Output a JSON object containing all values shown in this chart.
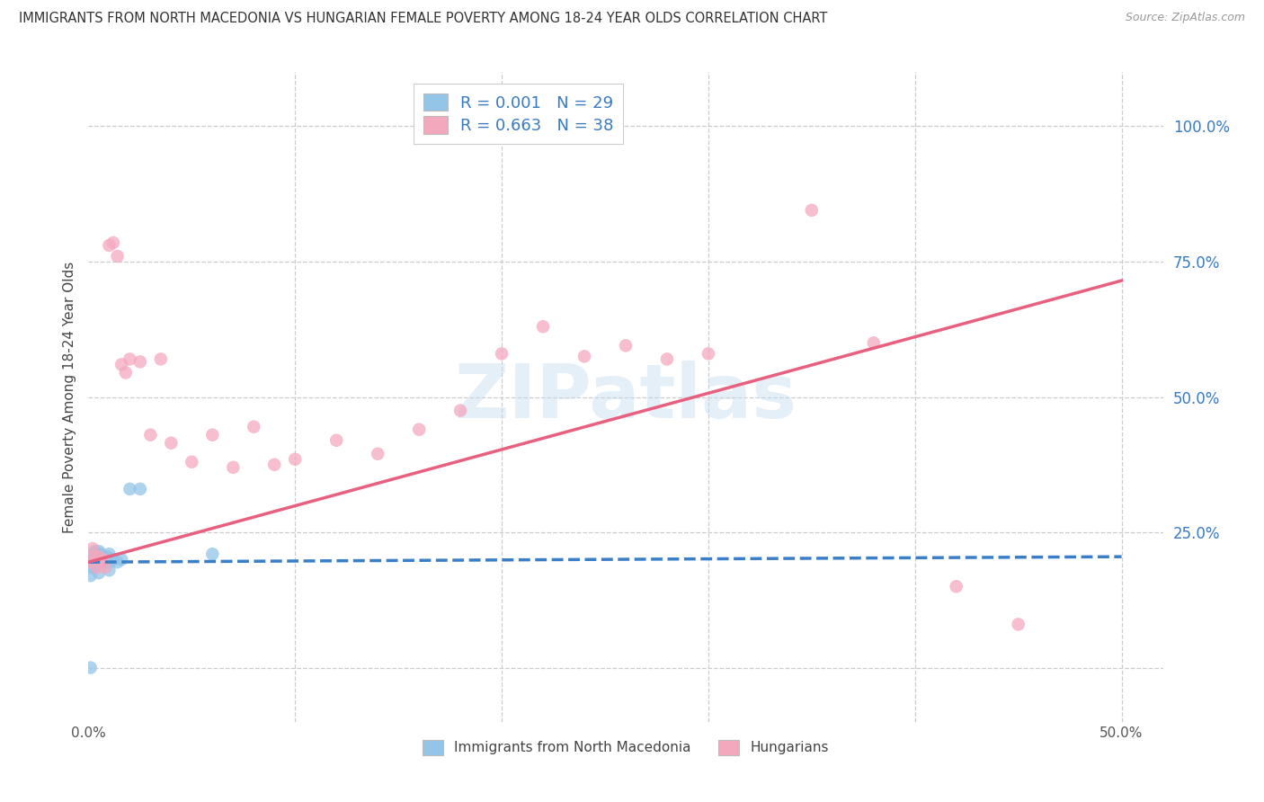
{
  "title": "IMMIGRANTS FROM NORTH MACEDONIA VS HUNGARIAN FEMALE POVERTY AMONG 18-24 YEAR OLDS CORRELATION CHART",
  "source": "Source: ZipAtlas.com",
  "ylabel": "Female Poverty Among 18-24 Year Olds",
  "xlim": [
    0.0,
    0.52
  ],
  "ylim": [
    -0.1,
    1.1
  ],
  "ytick_positions": [
    0.0,
    0.25,
    0.5,
    0.75,
    1.0
  ],
  "ytick_labels": [
    "",
    "25.0%",
    "50.0%",
    "75.0%",
    "100.0%"
  ],
  "xtick_positions": [
    0.0,
    0.1,
    0.2,
    0.3,
    0.4,
    0.5
  ],
  "xtick_labels": [
    "0.0%",
    "",
    "",
    "",
    "",
    "50.0%"
  ],
  "background_color": "#ffffff",
  "grid_color": "#cccccc",
  "watermark": "ZIPatlas",
  "series": [
    {
      "label": "Immigrants from North Macedonia",
      "R": "0.001",
      "N": 29,
      "color": "#92C5E8",
      "trend_color": "#3A7EC8",
      "trend_style": "--",
      "points_x": [
        0.001,
        0.001,
        0.001,
        0.002,
        0.002,
        0.003,
        0.003,
        0.003,
        0.004,
        0.004,
        0.005,
        0.005,
        0.005,
        0.006,
        0.006,
        0.007,
        0.007,
        0.008,
        0.009,
        0.01,
        0.01,
        0.01,
        0.012,
        0.014,
        0.016,
        0.02,
        0.025,
        0.06,
        0.001
      ],
      "points_y": [
        0.195,
        0.185,
        0.17,
        0.21,
        0.195,
        0.215,
        0.2,
        0.185,
        0.205,
        0.195,
        0.215,
        0.2,
        0.175,
        0.21,
        0.195,
        0.205,
        0.195,
        0.2,
        0.205,
        0.21,
        0.195,
        0.18,
        0.2,
        0.195,
        0.2,
        0.33,
        0.33,
        0.21,
        0.0
      ],
      "trend_x": [
        0.0,
        0.5
      ],
      "trend_y": [
        0.195,
        0.205
      ]
    },
    {
      "label": "Hungarians",
      "R": "0.663",
      "N": 38,
      "color": "#F4A8BE",
      "trend_color": "#E86080",
      "trend_style": "-",
      "points_x": [
        0.001,
        0.002,
        0.003,
        0.004,
        0.005,
        0.006,
        0.007,
        0.008,
        0.01,
        0.012,
        0.014,
        0.016,
        0.018,
        0.02,
        0.025,
        0.03,
        0.035,
        0.04,
        0.05,
        0.06,
        0.07,
        0.08,
        0.09,
        0.1,
        0.12,
        0.14,
        0.16,
        0.18,
        0.2,
        0.22,
        0.24,
        0.26,
        0.28,
        0.3,
        0.35,
        0.38,
        0.42,
        0.45
      ],
      "points_y": [
        0.195,
        0.22,
        0.205,
        0.185,
        0.205,
        0.195,
        0.2,
        0.185,
        0.78,
        0.785,
        0.76,
        0.56,
        0.545,
        0.57,
        0.565,
        0.43,
        0.57,
        0.415,
        0.38,
        0.43,
        0.37,
        0.445,
        0.375,
        0.385,
        0.42,
        0.395,
        0.44,
        0.475,
        0.58,
        0.63,
        0.575,
        0.595,
        0.57,
        0.58,
        0.845,
        0.6,
        0.15,
        0.08
      ],
      "trend_x": [
        0.0,
        0.5
      ],
      "trend_y": [
        0.195,
        0.715
      ]
    }
  ]
}
